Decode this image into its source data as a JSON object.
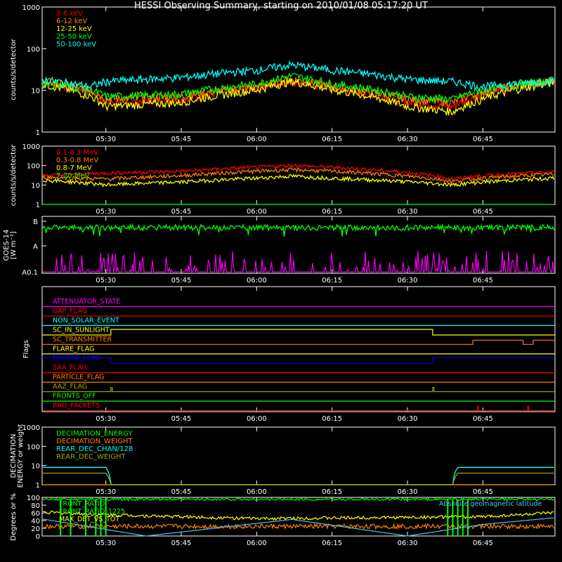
{
  "title": "HESSI Observing Summary, starting on 2010/01/08 05:17:20 UT",
  "time_axis": {
    "start": "05:17:20",
    "end": "06:59:20",
    "ticks": [
      "05:30",
      "05:45",
      "06:00",
      "06:15",
      "06:30",
      "06:45"
    ]
  },
  "chart_data": [
    {
      "type": "line",
      "panel": "hxr",
      "ylabel": "counts/s/detector",
      "yscale": "log",
      "ylim": [
        1,
        1000
      ],
      "yticks": [
        "1",
        "10",
        "100",
        "1000"
      ],
      "series": [
        {
          "name": "3-6 keV",
          "color": "#ff0000",
          "x": [
            "05:17",
            "05:27",
            "05:30",
            "05:45",
            "06:00",
            "06:07",
            "06:15",
            "06:30",
            "06:39",
            "06:45",
            "06:59"
          ],
          "values": [
            16,
            9,
            5,
            6,
            11,
            16,
            11,
            5,
            4,
            8,
            17
          ]
        },
        {
          "name": "6-12 keV",
          "color": "#ff7f00",
          "x": [
            "05:17",
            "05:27",
            "05:30",
            "05:45",
            "06:00",
            "06:07",
            "06:15",
            "06:30",
            "06:39",
            "06:45",
            "06:59"
          ],
          "values": [
            17,
            10,
            6,
            7,
            12,
            18,
            12,
            6,
            5,
            9,
            17
          ]
        },
        {
          "name": "12-25 keV",
          "color": "#ffff00",
          "x": [
            "05:17",
            "05:27",
            "05:30",
            "05:45",
            "06:00",
            "06:07",
            "06:15",
            "06:30",
            "06:39",
            "06:45",
            "06:59"
          ],
          "values": [
            14,
            7,
            4,
            5,
            10,
            16,
            10,
            4,
            3,
            6,
            15
          ]
        },
        {
          "name": "25-50 keV",
          "color": "#00ff00",
          "x": [
            "05:17",
            "05:27",
            "05:30",
            "05:45",
            "06:00",
            "06:07",
            "06:15",
            "06:30",
            "06:39",
            "06:45",
            "06:59"
          ],
          "values": [
            16,
            10,
            7,
            8,
            14,
            22,
            14,
            7,
            6,
            10,
            17
          ]
        },
        {
          "name": "50-100 keV",
          "color": "#00ffff",
          "x": [
            "05:17",
            "05:27",
            "05:30",
            "05:45",
            "06:00",
            "06:07",
            "06:15",
            "06:30",
            "06:39",
            "06:45",
            "06:59"
          ],
          "values": [
            18,
            12,
            16,
            20,
            30,
            40,
            30,
            18,
            16,
            12,
            17
          ]
        }
      ]
    },
    {
      "type": "line",
      "panel": "gamma",
      "ylabel": "counts/s/detector",
      "yscale": "log",
      "ylim": [
        1,
        1000
      ],
      "yticks": [
        "1",
        "10",
        "100",
        "1000"
      ],
      "series": [
        {
          "name": "0.1-0.3 MeV",
          "color": "#ff0000",
          "x": [
            "05:17",
            "05:30",
            "05:45",
            "06:00",
            "06:07",
            "06:15",
            "06:39",
            "06:45",
            "06:59"
          ],
          "values": [
            30,
            40,
            50,
            80,
            100,
            80,
            20,
            30,
            45
          ]
        },
        {
          "name": "0.3-0.8 MeV",
          "color": "#ff7f00",
          "x": [
            "05:17",
            "05:30",
            "05:45",
            "06:00",
            "06:07",
            "06:15",
            "06:39",
            "06:45",
            "06:59"
          ],
          "values": [
            25,
            20,
            30,
            50,
            60,
            50,
            15,
            22,
            35
          ]
        },
        {
          "name": "0.8-7 MeV",
          "color": "#ffff00",
          "x": [
            "05:17",
            "05:30",
            "05:45",
            "06:00",
            "06:07",
            "06:15",
            "06:39",
            "06:45",
            "06:59"
          ],
          "values": [
            18,
            10,
            14,
            22,
            28,
            22,
            10,
            14,
            22
          ]
        },
        {
          "name": "7-20 MeV",
          "color": "#00ff00",
          "x": [
            "05:17",
            "06:59"
          ],
          "values": [
            1,
            1
          ]
        }
      ]
    },
    {
      "type": "line",
      "panel": "goes",
      "ylabel": "GOES-14",
      "ylabel2": "[W m⁻²]",
      "yticks": [
        "A0.1",
        "A",
        "B"
      ],
      "series": [
        {
          "name": "",
          "color": "#00ff00",
          "x": [
            "05:17",
            "06:59"
          ],
          "values": [
            0.8,
            0.8
          ]
        },
        {
          "name": "",
          "color": "#ff00ff",
          "x": [
            "05:17",
            "06:59"
          ],
          "values": [
            0.1,
            0.1
          ]
        }
      ]
    },
    {
      "type": "line",
      "panel": "decimation",
      "ylabel": "DECIMATION",
      "ylabel2": "ENERGY or weight",
      "yscale": "log",
      "ylim": [
        1,
        1000
      ],
      "yticks": [
        "1",
        "10",
        "100",
        "1000"
      ],
      "series": [
        {
          "name": "DECIMATION_ENERGY",
          "color": "#00ff00",
          "x": [
            "05:17",
            "06:59"
          ],
          "values": [
            1,
            1
          ]
        },
        {
          "name": "DECIMATION_WEIGHT",
          "color": "#ff7f00",
          "x": [
            "05:17",
            "06:59"
          ],
          "values": [
            1,
            1
          ]
        },
        {
          "name": "REAR_DEC_CHAN/128",
          "color": "#00ffff",
          "x": [
            "05:17",
            "05:30",
            "05:31",
            "06:39",
            "06:40",
            "06:59"
          ],
          "values": [
            8,
            8,
            1,
            1,
            8,
            8
          ]
        },
        {
          "name": "REAR_DEC_WEIGHT",
          "color": "#a6a600",
          "x": [
            "05:17",
            "05:30",
            "05:31",
            "06:39",
            "06:40",
            "06:59"
          ],
          "values": [
            4,
            4,
            1,
            1,
            4,
            4
          ]
        }
      ]
    },
    {
      "type": "line",
      "panel": "fronts",
      "ylabel": "Degrees or %",
      "ylim": [
        0,
        100
      ],
      "yticks": [
        "0",
        "20",
        "40",
        "60",
        "80",
        "100"
      ],
      "series": [
        {
          "name": "FRONT_RATIO",
          "color": "#00ff00",
          "x": [
            "05:17",
            "06:59"
          ],
          "values": [
            95,
            95
          ]
        },
        {
          "name": "FRONT_RATIO_1225",
          "color": "#00ff00",
          "x": [
            "05:17",
            "06:59"
          ],
          "values": [
            95,
            95
          ]
        },
        {
          "name": "MAX_DET_VS_TOT",
          "color": "#ffff00",
          "x": [
            "05:17",
            "05:30",
            "06:00",
            "06:45",
            "06:59"
          ],
          "values": [
            62,
            55,
            45,
            50,
            60
          ]
        },
        {
          "name": "Absolute geomagnetic latitude",
          "color": "#40c8ff",
          "x": [
            "05:17",
            "05:38",
            "06:07",
            "06:30",
            "06:45",
            "06:59"
          ],
          "values": [
            45,
            0,
            43,
            0,
            30,
            47
          ]
        }
      ]
    }
  ],
  "flags": {
    "ylabel": "Flags",
    "items": [
      {
        "name": "ATTENUATOR_STATE",
        "color": "#ff00ff"
      },
      {
        "name": "GAP_FLAG",
        "color": "#ff0000"
      },
      {
        "name": "NON_SOLAR_EVENT",
        "color": "#00ffff"
      },
      {
        "name": "SC_IN_SUNLIGHT",
        "color": "#ffff00"
      },
      {
        "name": "SC_TRANSMITTER",
        "color": "#ff7f00"
      },
      {
        "name": "FLARE_FLAG",
        "color": "#ffff00"
      },
      {
        "name": "ECLIPSE_FLAG",
        "color": "#0000ff"
      },
      {
        "name": "SAA_FLAG",
        "color": "#ff0000"
      },
      {
        "name": "PARTICLE_FLAG",
        "color": "#ff7f00"
      },
      {
        "name": "AAZ_FLAG",
        "color": "#a6a600"
      },
      {
        "name": "FRONTS_OFF",
        "color": "#00ff00"
      },
      {
        "name": "BAD_PACKETS",
        "color": "#ff0000"
      }
    ]
  }
}
